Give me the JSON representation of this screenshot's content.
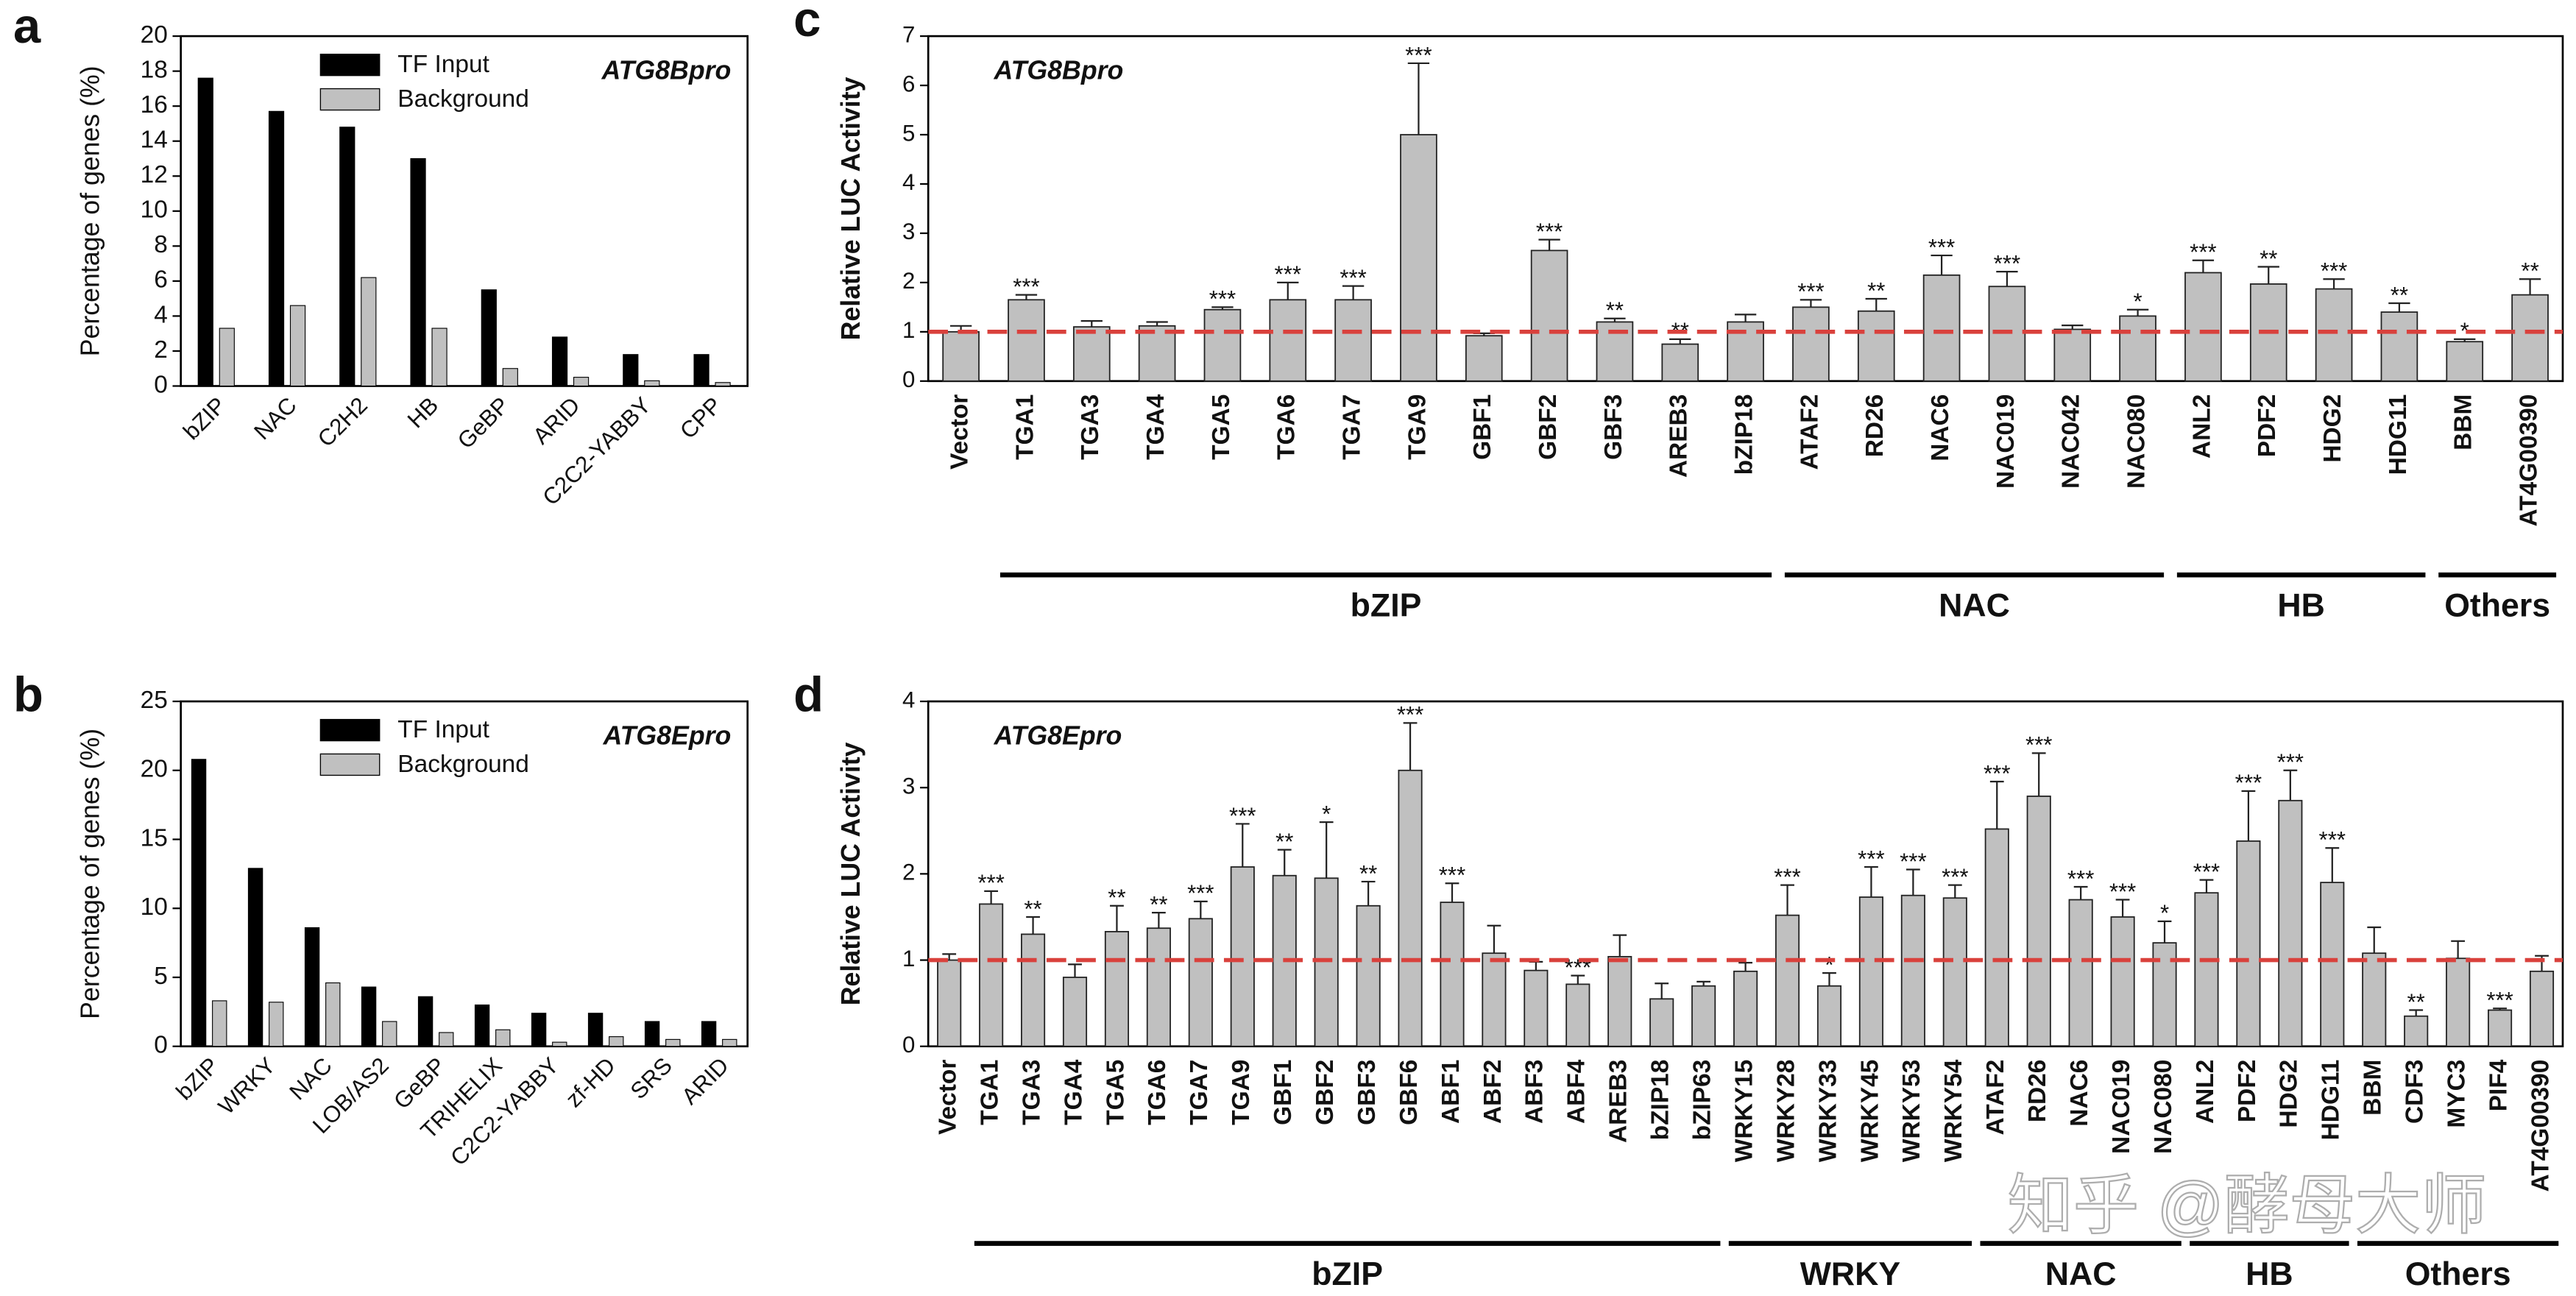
{
  "chart_data": [
    {
      "type": "bar",
      "panel": "a",
      "ylabel": "Percentage of genes (%)",
      "annotation": "ATG8Bpro",
      "categories": [
        "bZIP",
        "NAC",
        "C2H2",
        "HB",
        "GeBP",
        "ARID",
        "C2C2-YABBY",
        "CPP"
      ],
      "series": [
        {
          "name": "TF Input",
          "color": "#000000",
          "values": [
            17.6,
            15.7,
            14.8,
            13,
            5.5,
            2.8,
            1.8,
            1.8
          ]
        },
        {
          "name": "Background",
          "color": "#c0c0c0",
          "values": [
            3.3,
            4.6,
            6.2,
            3.3,
            1,
            0.5,
            0.3,
            0.2
          ]
        }
      ],
      "ylim": [
        0,
        20
      ],
      "yticks": [
        0,
        2,
        4,
        6,
        8,
        10,
        12,
        14,
        16,
        18,
        20
      ]
    },
    {
      "type": "bar",
      "panel": "b",
      "ylabel": "Percentage of genes (%)",
      "annotation": "ATG8Epro",
      "categories": [
        "bZIP",
        "WRKY",
        "NAC",
        "LOB/AS2",
        "GeBP",
        "TRIHELIX",
        "C2C2-YABBY",
        "zf-HD",
        "SRS",
        "ARID"
      ],
      "series": [
        {
          "name": "TF Input",
          "color": "#000000",
          "values": [
            20.8,
            12.9,
            8.6,
            4.3,
            3.6,
            3.0,
            2.4,
            2.4,
            1.8,
            1.8
          ]
        },
        {
          "name": "Background",
          "color": "#c0c0c0",
          "values": [
            3.3,
            3.2,
            4.6,
            1.8,
            1.0,
            1.2,
            0.3,
            0.7,
            0.5,
            0.5
          ]
        }
      ],
      "ylim": [
        0,
        25
      ],
      "yticks": [
        0,
        5,
        10,
        15,
        20,
        25
      ]
    },
    {
      "type": "errorbar",
      "panel": "c",
      "ylabel": "Relative LUC Activity",
      "annotation": "ATG8Bpro",
      "color": "#c0c0c0",
      "reference_line": 1,
      "reference_color": "#d9413c",
      "categories": [
        "Vector",
        "TGA1",
        "TGA3",
        "TGA4",
        "TGA5",
        "TGA6",
        "TGA7",
        "TGA9",
        "GBF1",
        "GBF2",
        "GBF3",
        "AREB3",
        "bZIP18",
        "ATAF2",
        "RD26",
        "NAC6",
        "NAC019",
        "NAC042",
        "NAC080",
        "ANL2",
        "PDF2",
        "HDG2",
        "HDG11",
        "BBM",
        "AT4G00390"
      ],
      "values": [
        1.0,
        1.65,
        1.1,
        1.12,
        1.45,
        1.65,
        1.65,
        5.0,
        0.92,
        2.65,
        1.2,
        0.75,
        1.2,
        1.5,
        1.42,
        2.15,
        1.92,
        1.05,
        1.32,
        2.2,
        1.97,
        1.87,
        1.4,
        0.8,
        1.75
      ],
      "errors": [
        0.12,
        0.1,
        0.12,
        0.08,
        0.05,
        0.35,
        0.28,
        1.45,
        0.05,
        0.22,
        0.07,
        0.1,
        0.15,
        0.15,
        0.25,
        0.4,
        0.3,
        0.08,
        0.13,
        0.25,
        0.35,
        0.2,
        0.18,
        0.05,
        0.32
      ],
      "significance": [
        null,
        "***",
        null,
        null,
        "***",
        "***",
        "***",
        "***",
        null,
        "***",
        "**",
        "**",
        null,
        "***",
        "**",
        "***",
        "***",
        null,
        "*",
        "***",
        "**",
        "***",
        "**",
        "*",
        "**"
      ],
      "groups": [
        {
          "label": "bZIP",
          "from": 1,
          "to": 12
        },
        {
          "label": "NAC",
          "from": 13,
          "to": 18
        },
        {
          "label": "HB",
          "from": 19,
          "to": 22
        },
        {
          "label": "Others",
          "from": 23,
          "to": 24
        }
      ],
      "ylim": [
        0,
        7
      ],
      "yticks": [
        0,
        1,
        2,
        3,
        4,
        5,
        6,
        7
      ]
    },
    {
      "type": "errorbar",
      "panel": "d",
      "ylabel": "Relative LUC Activity",
      "annotation": "ATG8Epro",
      "color": "#c0c0c0",
      "reference_line": 1,
      "reference_color": "#d9413c",
      "watermark": "知乎 @酵母大师",
      "categories": [
        "Vector",
        "TGA1",
        "TGA3",
        "TGA4",
        "TGA5",
        "TGA6",
        "TGA7",
        "TGA9",
        "GBF1",
        "GBF2",
        "GBF3",
        "GBF6",
        "ABF1",
        "ABF2",
        "ABF3",
        "ABF4",
        "AREB3",
        "bZIP18",
        "bZIP63",
        "WRKY15",
        "WRKY28",
        "WRKY33",
        "WRKY45",
        "WRKY53",
        "WRKY54",
        "ATAF2",
        "RD26",
        "NAC6",
        "NAC019",
        "NAC080",
        "ANL2",
        "PDF2",
        "HDG2",
        "HDG11",
        "BBM",
        "CDF3",
        "MYC3",
        "PIF4",
        "AT4G00390"
      ],
      "values": [
        1.0,
        1.65,
        1.3,
        0.8,
        1.33,
        1.37,
        1.48,
        2.08,
        1.98,
        1.95,
        1.63,
        3.2,
        1.67,
        1.08,
        0.88,
        0.72,
        1.04,
        0.55,
        0.7,
        0.87,
        1.52,
        0.7,
        1.73,
        1.75,
        1.72,
        2.52,
        2.9,
        1.7,
        1.5,
        1.2,
        1.78,
        2.38,
        2.85,
        1.9,
        1.08,
        0.35,
        1.02,
        0.42,
        0.87
      ],
      "errors": [
        0.07,
        0.15,
        0.2,
        0.15,
        0.3,
        0.18,
        0.2,
        0.5,
        0.3,
        0.65,
        0.28,
        0.55,
        0.22,
        0.32,
        0.1,
        0.1,
        0.25,
        0.18,
        0.05,
        0.1,
        0.35,
        0.15,
        0.35,
        0.3,
        0.15,
        0.55,
        0.5,
        0.15,
        0.2,
        0.25,
        0.15,
        0.58,
        0.35,
        0.4,
        0.3,
        0.07,
        0.2,
        0.02,
        0.18
      ],
      "significance": [
        null,
        "***",
        "**",
        null,
        "**",
        "**",
        "***",
        "***",
        "**",
        "*",
        "**",
        "***",
        "***",
        null,
        null,
        "***",
        null,
        null,
        null,
        null,
        "***",
        "*",
        "***",
        "***",
        "***",
        "***",
        "***",
        "***",
        "***",
        "*",
        "***",
        "***",
        "***",
        "***",
        null,
        "**",
        null,
        "***",
        null
      ],
      "groups": [
        {
          "label": "bZIP",
          "from": 1,
          "to": 18
        },
        {
          "label": "WRKY",
          "from": 19,
          "to": 24
        },
        {
          "label": "NAC",
          "from": 25,
          "to": 29
        },
        {
          "label": "HB",
          "from": 30,
          "to": 33
        },
        {
          "label": "Others",
          "from": 34,
          "to": 38
        }
      ],
      "ylim": [
        0,
        4
      ],
      "yticks": [
        0,
        1,
        2,
        3,
        4
      ]
    }
  ]
}
